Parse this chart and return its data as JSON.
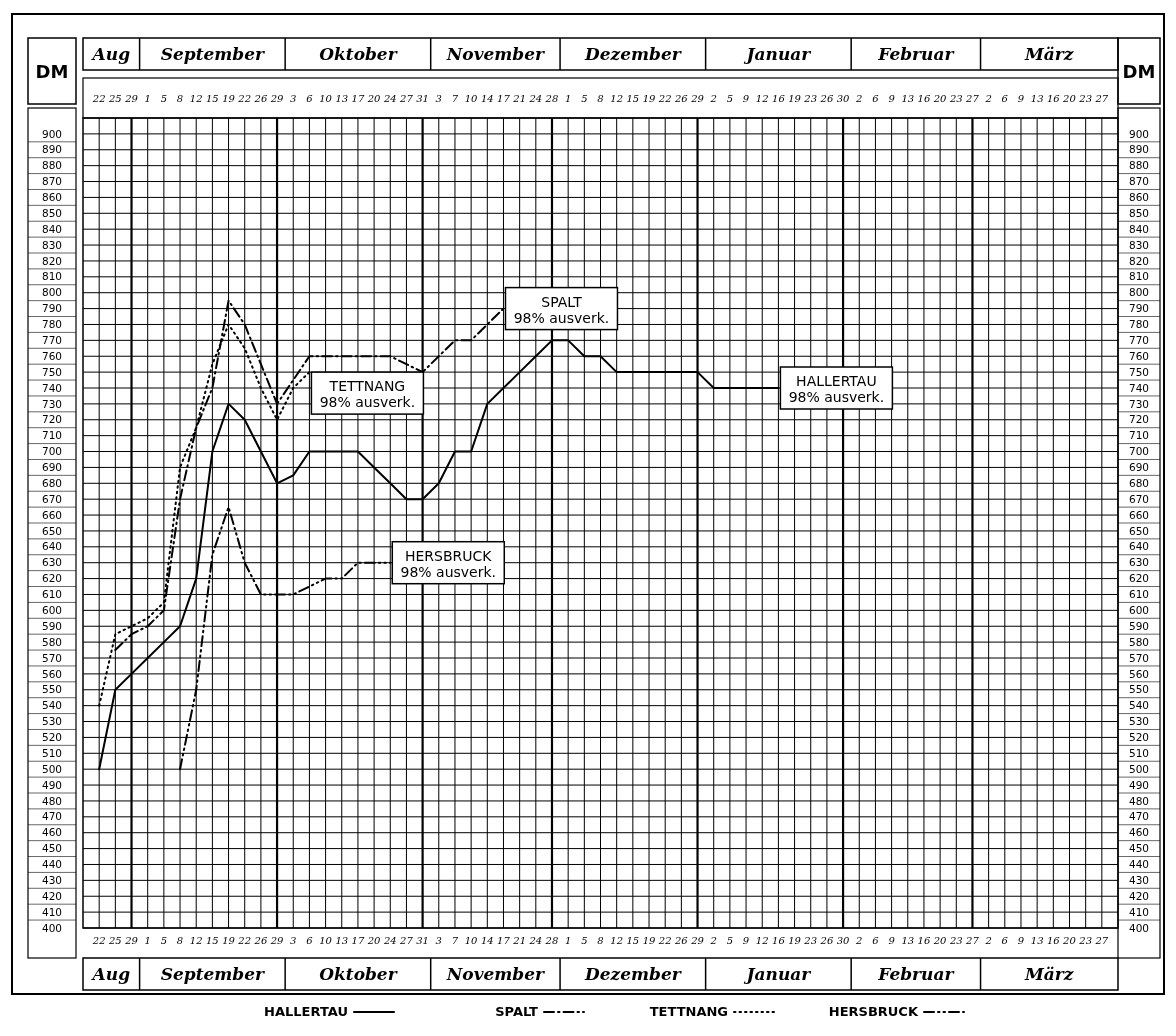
{
  "chart_data": {
    "type": "line",
    "ylabel": "DM",
    "y2label": "DM",
    "categories": [
      "22",
      "25",
      "29",
      "1",
      "5",
      "8",
      "12",
      "15",
      "19",
      "22",
      "26",
      "29",
      "3",
      "6",
      "10",
      "13",
      "17",
      "20",
      "24",
      "27",
      "31",
      "3",
      "7",
      "10",
      "14",
      "17",
      "21",
      "24",
      "28",
      "1",
      "5",
      "8",
      "12",
      "15",
      "19",
      "22",
      "26",
      "29",
      "2",
      "5",
      "9",
      "12",
      "16",
      "19",
      "23",
      "26",
      "30",
      "2",
      "6",
      "9",
      "13",
      "16",
      "20",
      "23",
      "27",
      "2",
      "6",
      "9",
      "13",
      "16",
      "20",
      "23",
      "27"
    ],
    "series": [
      {
        "name": "HALLERTAU",
        "color": "#000000",
        "line_style": "solid",
        "values": [
          500,
          550,
          560,
          570,
          580,
          590,
          620,
          700,
          730,
          720,
          700,
          680,
          685,
          700,
          700,
          700,
          700,
          690,
          680,
          670,
          670,
          680,
          700,
          700,
          730,
          740,
          750,
          760,
          770,
          770,
          760,
          760,
          750,
          750,
          750,
          750,
          750,
          750,
          740,
          740,
          740,
          740,
          740,
          null,
          null,
          null,
          null,
          null,
          null,
          null,
          null,
          null,
          null,
          null,
          null,
          null,
          null,
          null,
          null,
          null,
          null,
          null,
          null
        ]
      },
      {
        "name": "SPALT",
        "color": "#000000",
        "line_style": "dashdot",
        "values": [
          null,
          575,
          585,
          590,
          600,
          670,
          715,
          740,
          795,
          780,
          755,
          730,
          745,
          760,
          760,
          760,
          760,
          760,
          760,
          755,
          750,
          760,
          770,
          770,
          780,
          790,
          null,
          null,
          null,
          null,
          null,
          null,
          null,
          null,
          null,
          null,
          null,
          null,
          null,
          null,
          null,
          null,
          null,
          null,
          null,
          null,
          null,
          null,
          null,
          null,
          null,
          null,
          null,
          null,
          null,
          null,
          null,
          null,
          null,
          null,
          null,
          null,
          null
        ]
      },
      {
        "name": "TETTNANG",
        "color": "#000000",
        "line_style": "dotted",
        "values": [
          540,
          585,
          590,
          595,
          605,
          690,
          715,
          755,
          780,
          765,
          740,
          720,
          740,
          750,
          null,
          null,
          null,
          null,
          null,
          null,
          null,
          null,
          null,
          null,
          null,
          null,
          null,
          null,
          null,
          null,
          null,
          null,
          null,
          null,
          null,
          null,
          null,
          null,
          null,
          null,
          null,
          null,
          null,
          null,
          null,
          null,
          null,
          null,
          null,
          null,
          null,
          null,
          null,
          null,
          null,
          null,
          null,
          null,
          null,
          null,
          null,
          null,
          null
        ]
      },
      {
        "name": "HERSBRUCK",
        "color": "#000000",
        "line_style": "dashdotdot",
        "values": [
          null,
          null,
          null,
          null,
          null,
          500,
          550,
          635,
          665,
          630,
          610,
          610,
          610,
          615,
          620,
          620,
          630,
          630,
          630,
          null,
          null,
          null,
          null,
          null,
          null,
          null,
          null,
          null,
          null,
          null,
          null,
          null,
          null,
          null,
          null,
          null,
          null,
          null,
          null,
          null,
          null,
          null,
          null,
          null,
          null,
          null,
          null,
          null,
          null,
          null,
          null,
          null,
          null,
          null,
          null,
          null,
          null,
          null,
          null,
          null,
          null,
          null,
          null
        ]
      }
    ],
    "annotations": [
      "Aug",
      "September",
      "Oktober",
      "November",
      "Dezember",
      "Januar",
      "Februar",
      "März",
      "HALLERTAU\n98% ausverk.",
      "SPALT\n98% ausverk.",
      "TETTNANG\n98% ausverk.",
      "HERSBRUCK\n98% ausverk."
    ],
    "ylim": [
      400,
      910
    ],
    "yticks": [
      400,
      410,
      420,
      430,
      440,
      450,
      460,
      470,
      480,
      490,
      500,
      510,
      520,
      530,
      540,
      550,
      560,
      570,
      580,
      590,
      600,
      610,
      620,
      630,
      640,
      650,
      660,
      670,
      680,
      690,
      700,
      710,
      720,
      730,
      740,
      750,
      760,
      770,
      780,
      790,
      800,
      810,
      820,
      830,
      840,
      850,
      860,
      870,
      880,
      890,
      900
    ],
    "y2lim": [
      400,
      910
    ],
    "y2ticks": [
      400,
      410,
      420,
      430,
      440,
      450,
      460,
      470,
      480,
      490,
      500,
      510,
      520,
      530,
      540,
      550,
      560,
      570,
      580,
      590,
      600,
      610,
      620,
      630,
      640,
      650,
      660,
      670,
      680,
      690,
      700,
      710,
      720,
      730,
      740,
      750,
      760,
      770,
      780,
      790,
      800,
      810,
      820,
      830,
      840,
      850,
      860,
      870,
      880,
      890,
      900
    ],
    "grid": true,
    "legend": "bottom",
    "marker": "none"
  }
}
